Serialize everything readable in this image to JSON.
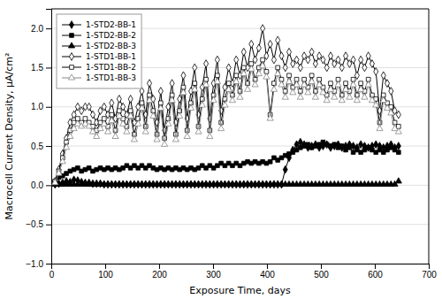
{
  "chart_data": {
    "type": "line",
    "xlabel": "Exposure Time, days",
    "ylabel": "Macrocell Current Density, μA/cm²",
    "xlim": [
      0,
      700
    ],
    "ylim": [
      -1.0,
      2.25
    ],
    "xticks": [
      0,
      100,
      200,
      300,
      400,
      500,
      600,
      700
    ],
    "yticks": [
      {
        "value": -1.0,
        "label": "−1.0"
      },
      {
        "value": -0.5,
        "label": "−0.5"
      },
      {
        "value": 0.0,
        "label": "0.0"
      },
      0.5,
      {
        "value": 1.0,
        "label": "1.0"
      },
      1.5,
      {
        "value": 2.0,
        "label": "2.0"
      }
    ],
    "grid": "y",
    "legend": "upper left",
    "x": [
      7,
      14,
      21,
      28,
      35,
      42,
      49,
      56,
      63,
      70,
      77,
      84,
      91,
      98,
      105,
      112,
      119,
      126,
      133,
      140,
      147,
      154,
      161,
      168,
      175,
      182,
      189,
      196,
      203,
      210,
      217,
      224,
      231,
      238,
      245,
      252,
      259,
      266,
      273,
      280,
      287,
      294,
      301,
      308,
      315,
      322,
      329,
      336,
      343,
      350,
      357,
      364,
      371,
      378,
      385,
      392,
      399,
      406,
      413,
      420,
      427,
      434,
      441,
      448,
      455,
      462,
      469,
      476,
      483,
      490,
      497,
      504,
      511,
      518,
      525,
      532,
      539,
      546,
      553,
      560,
      567,
      574,
      581,
      588,
      595,
      602,
      609,
      616,
      623,
      630,
      637,
      644
    ],
    "series": [
      {
        "name": "1-STD2-BB-1",
        "color": "#000000",
        "marker": "diamond",
        "line_style": "solid",
        "values": [
          0.01,
          0.02,
          0.03,
          0.05,
          0.04,
          0.07,
          0.06,
          0.04,
          0.03,
          0.03,
          0.02,
          0.02,
          0.02,
          0.01,
          0.01,
          0.01,
          0.01,
          0.01,
          0.01,
          0.01,
          0.01,
          0.01,
          0.01,
          0.01,
          0.01,
          0.01,
          0.01,
          0.01,
          0.01,
          0.01,
          0.01,
          0.01,
          0.01,
          0.01,
          0.01,
          0.01,
          0.01,
          0.01,
          0.01,
          0.01,
          0.01,
          0.01,
          0.01,
          0.01,
          0.01,
          0.01,
          0.01,
          0.01,
          0.01,
          0.01,
          0.01,
          0.01,
          0.01,
          0.01,
          0.01,
          0.01,
          0.01,
          0.01,
          0.01,
          0.01,
          0.01,
          0.2,
          0.35,
          0.45,
          0.52,
          0.55,
          0.52,
          0.48,
          0.5,
          0.52,
          0.48,
          0.5,
          0.52,
          0.48,
          0.5,
          0.52,
          0.48,
          0.5,
          0.52,
          0.5,
          0.48,
          0.52,
          0.5,
          0.48,
          0.5,
          0.52,
          0.5,
          0.48,
          0.5,
          0.52,
          0.48,
          0.5
        ]
      },
      {
        "name": "1-STD2-BB-2",
        "color": "#000000",
        "marker": "square",
        "line_style": "solid",
        "values": [
          0.05,
          0.1,
          0.12,
          0.15,
          0.18,
          0.2,
          0.22,
          0.18,
          0.2,
          0.22,
          0.18,
          0.2,
          0.22,
          0.2,
          0.22,
          0.2,
          0.22,
          0.2,
          0.22,
          0.25,
          0.22,
          0.25,
          0.22,
          0.25,
          0.22,
          0.25,
          0.22,
          0.2,
          0.22,
          0.2,
          0.22,
          0.2,
          0.22,
          0.2,
          0.22,
          0.2,
          0.22,
          0.2,
          0.22,
          0.25,
          0.22,
          0.25,
          0.22,
          0.25,
          0.28,
          0.25,
          0.28,
          0.25,
          0.28,
          0.25,
          0.28,
          0.3,
          0.28,
          0.3,
          0.28,
          0.3,
          0.28,
          0.3,
          0.35,
          0.32,
          0.35,
          0.38,
          0.4,
          0.42,
          0.45,
          0.48,
          0.5,
          0.52,
          0.48,
          0.5,
          0.52,
          0.55,
          0.52,
          0.5,
          0.52,
          0.48,
          0.5,
          0.45,
          0.48,
          0.42,
          0.45,
          0.42,
          0.45,
          0.48,
          0.45,
          0.42,
          0.45,
          0.42,
          0.45,
          0.48,
          0.45,
          0.42
        ]
      },
      {
        "name": "1-STD2-BB-3",
        "color": "#000000",
        "marker": "triangle-up",
        "line_style": "solid",
        "values": [
          0.01,
          0.01,
          0.01,
          0.01,
          0.01,
          0.01,
          0.01,
          0.01,
          0.01,
          0.01,
          0.01,
          0.01,
          0.01,
          0.01,
          0.01,
          0.01,
          0.01,
          0.01,
          0.01,
          0.01,
          0.01,
          0.01,
          0.01,
          0.01,
          0.01,
          0.01,
          0.01,
          0.01,
          0.01,
          0.01,
          0.01,
          0.01,
          0.01,
          0.01,
          0.01,
          0.01,
          0.01,
          0.01,
          0.01,
          0.01,
          0.01,
          0.01,
          0.01,
          0.01,
          0.01,
          0.01,
          0.01,
          0.01,
          0.01,
          0.01,
          0.01,
          0.01,
          0.01,
          0.01,
          0.01,
          0.01,
          0.01,
          0.01,
          0.01,
          0.01,
          0.01,
          0.01,
          0.01,
          0.01,
          0.01,
          0.01,
          0.01,
          0.01,
          0.01,
          0.01,
          0.01,
          0.01,
          0.01,
          0.01,
          0.01,
          0.01,
          0.01,
          0.01,
          0.01,
          0.01,
          0.01,
          0.01,
          0.01,
          0.01,
          0.01,
          0.01,
          0.01,
          0.01,
          0.01,
          0.01,
          0.01,
          0.05
        ]
      },
      {
        "name": "1-STD1-BB-1",
        "color": "#000000",
        "marker": "diamond-open",
        "line_style": "solid",
        "values": [
          0.05,
          0.2,
          0.4,
          0.6,
          0.8,
          0.9,
          1.0,
          0.95,
          1.0,
          1.0,
          0.9,
          0.8,
          0.95,
          1.0,
          0.9,
          1.05,
          0.85,
          1.1,
          1.0,
          0.9,
          1.1,
          0.8,
          1.0,
          1.2,
          0.9,
          1.3,
          1.1,
          0.8,
          1.2,
          0.7,
          1.0,
          1.3,
          0.8,
          1.1,
          1.4,
          0.85,
          1.2,
          1.5,
          0.9,
          1.25,
          1.55,
          0.85,
          1.3,
          1.6,
          0.95,
          1.25,
          1.5,
          1.3,
          1.6,
          1.4,
          1.7,
          1.5,
          1.8,
          1.6,
          1.75,
          2.0,
          1.65,
          1.8,
          1.6,
          1.85,
          1.65,
          1.5,
          1.7,
          1.55,
          1.6,
          1.5,
          1.65,
          1.6,
          1.7,
          1.55,
          1.65,
          1.6,
          1.5,
          1.65,
          1.55,
          1.6,
          1.5,
          1.65,
          1.55,
          1.6,
          1.4,
          1.6,
          1.5,
          1.65,
          1.55,
          1.45,
          0.95,
          1.4,
          1.3,
          1.2,
          0.95,
          0.9
        ]
      },
      {
        "name": "1-STD1-BB-2",
        "color": "#000000",
        "marker": "square-open",
        "line_style": "solid",
        "values": [
          0.05,
          0.18,
          0.35,
          0.55,
          0.7,
          0.8,
          0.85,
          0.8,
          0.85,
          0.8,
          0.75,
          0.7,
          0.8,
          0.85,
          0.75,
          0.9,
          0.7,
          0.95,
          0.85,
          0.75,
          0.95,
          0.65,
          0.85,
          1.05,
          0.75,
          1.15,
          0.95,
          0.65,
          1.05,
          0.6,
          0.85,
          1.15,
          0.65,
          0.95,
          1.25,
          0.7,
          1.05,
          1.3,
          0.75,
          1.1,
          1.35,
          0.7,
          1.15,
          1.4,
          0.8,
          1.1,
          1.3,
          1.15,
          1.4,
          1.2,
          1.5,
          1.3,
          1.55,
          1.35,
          1.5,
          1.6,
          1.45,
          0.9,
          1.3,
          1.5,
          1.35,
          1.2,
          1.4,
          1.25,
          1.35,
          1.2,
          1.35,
          1.25,
          1.4,
          1.2,
          1.35,
          1.25,
          1.15,
          1.3,
          1.2,
          1.35,
          1.15,
          1.3,
          1.2,
          1.35,
          1.15,
          1.3,
          1.2,
          1.35,
          1.15,
          1.1,
          0.8,
          1.15,
          1.05,
          1.0,
          0.8,
          0.75
        ]
      },
      {
        "name": "1-STD1-BB-3",
        "color": "#888888",
        "marker": "triangle-up-open",
        "line_style": "solid",
        "values": [
          0.03,
          0.15,
          0.3,
          0.48,
          0.62,
          0.72,
          0.78,
          0.75,
          0.78,
          0.75,
          0.68,
          0.62,
          0.72,
          0.78,
          0.68,
          0.82,
          0.62,
          0.88,
          0.78,
          0.68,
          0.88,
          0.58,
          0.78,
          0.98,
          0.68,
          1.08,
          0.88,
          0.58,
          0.98,
          0.52,
          0.78,
          1.08,
          0.58,
          0.88,
          1.18,
          0.62,
          0.98,
          1.22,
          0.68,
          1.02,
          1.28,
          0.62,
          1.08,
          1.32,
          0.72,
          1.02,
          1.22,
          1.08,
          1.32,
          1.12,
          1.42,
          1.22,
          1.48,
          1.28,
          1.42,
          1.52,
          1.38,
          0.85,
          1.22,
          1.42,
          1.28,
          1.12,
          1.32,
          1.18,
          1.28,
          1.12,
          1.28,
          1.18,
          1.32,
          1.12,
          1.28,
          1.18,
          1.08,
          1.22,
          1.12,
          1.28,
          1.08,
          1.22,
          1.12,
          1.28,
          1.08,
          1.22,
          1.12,
          1.28,
          1.08,
          1.02,
          0.72,
          1.08,
          0.98,
          0.92,
          0.72,
          0.68
        ]
      }
    ]
  }
}
